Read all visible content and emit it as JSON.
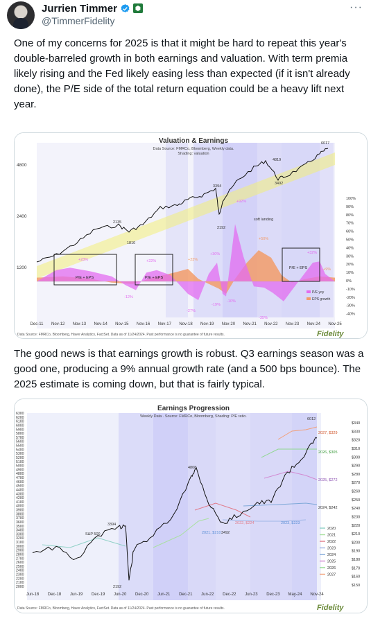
{
  "post": {
    "author": {
      "name": "Jurrien Timmer",
      "handle": "@TimmerFidelity"
    },
    "more_label": "···",
    "text1": "One of my concerns for 2025 is that it might be hard to repeat this year's double-barreled growth in both earnings and valuation.  With term premia likely rising and the Fed likely easing less than expected (if it isn't already done), the P/E side of the total return equation could be a heavy lift next year.",
    "text2": "The good news is that earnings growth is robust.  Q3 earnings season was a good one, producing a 9% annual growth rate (and a 500 bps bounce).  The 2025 estimate is coming down, but that is fairly typical."
  },
  "colors": {
    "price": "#111111",
    "pe_yoy": "#e36cf0",
    "eps_growth": "#f29c6a",
    "trend": "#f2ee7a",
    "shading": "#b8b7f5",
    "fidelity": "#6b8a3a"
  },
  "chart_data": [
    {
      "type": "line",
      "title": "Valuation & Earnings",
      "subtitle": "Data Source: FMRCo, Bloomberg, Weekly data.",
      "subtitle2": "Shading: valuation",
      "x_ticks": [
        "Dec-11",
        "Nov-12",
        "Nov-13",
        "Nov-14",
        "Nov-15",
        "Nov-16",
        "Nov-17",
        "Nov-18",
        "Nov-19",
        "Nov-20",
        "Nov-21",
        "Nov-22",
        "Nov-23",
        "Nov-24",
        "Nov-25"
      ],
      "y_left_ticks": [
        "4800",
        "2400",
        "1200"
      ],
      "y_right_ticks": [
        "100%",
        "90%",
        "80%",
        "70%",
        "60%",
        "50%",
        "40%",
        "30%",
        "20%",
        "10%",
        "0%",
        "-10%",
        "-20%",
        "-30%",
        "-40%"
      ],
      "series": [
        {
          "name": "S&P 500",
          "x": [
            "Dec-11",
            "Nov-12",
            "Nov-13",
            "Nov-14",
            "Nov-15",
            "Nov-16",
            "Nov-17",
            "Nov-18",
            "Nov-19",
            "Mar-20",
            "Nov-20",
            "Nov-21",
            "Oct-22",
            "Nov-23",
            "Nov-24"
          ],
          "values": [
            1250,
            1400,
            1800,
            2070,
            2080,
            2200,
            2600,
            2700,
            3100,
            2192,
            3550,
            4700,
            3492,
            4550,
            6017
          ]
        },
        {
          "name": "P/E yoy"
        },
        {
          "name": "EPS growth"
        }
      ],
      "annotations": [
        "6017",
        "4819",
        "3394",
        "3492",
        "2135",
        "1810",
        "2192",
        "+92%",
        "soft landing",
        "+50%",
        "+23%",
        "+22%",
        "+23%",
        "+30%",
        "+32%",
        "+9%",
        "P/E + EPS",
        "P/E + EPS",
        "P/E + EPS",
        "-12%",
        "-27%",
        "-19%",
        "-10%",
        "-35%"
      ],
      "legend": [
        "P/E yoy",
        "EPS growth"
      ],
      "footer": "Data Source: FMRCo, Bloomberg, Haver Analytics, FactSet. Data as of 11/24/2024. Past performance is no guarantee of future results.",
      "brand": "Fidelity"
    },
    {
      "type": "line",
      "title": "Earnings Progression",
      "subtitle": "Weekly Data . Source: FMRCo, Bloomberg, Shading: P/E ratio.",
      "x_ticks": [
        "Jun-18",
        "Dec-18",
        "Jun-19",
        "Dec-19",
        "Jun-20",
        "Dec-20",
        "Jun-21",
        "Dec-21",
        "Jun-22",
        "Dec-22",
        "Jun-23",
        "Dec-23",
        "May-24",
        "Nov-24"
      ],
      "y_left_ticks": [
        "6300",
        "6200",
        "6100",
        "6000",
        "5900",
        "5800",
        "5700",
        "5600",
        "5500",
        "5400",
        "5300",
        "5200",
        "5100",
        "5000",
        "4900",
        "4800",
        "4700",
        "4600",
        "4500",
        "4400",
        "4300",
        "4200",
        "4100",
        "4000",
        "3900",
        "3800",
        "3700",
        "3600",
        "3500",
        "3400",
        "3300",
        "3200",
        "3100",
        "3000",
        "2900",
        "2800",
        "2700",
        "2600",
        "2500",
        "2400",
        "2300",
        "2200",
        "2100",
        "2000"
      ],
      "y_right_ticks": [
        "$340",
        "$330",
        "$320",
        "$310",
        "$300",
        "$290",
        "$280",
        "$270",
        "$260",
        "$250",
        "$240",
        "$230",
        "$220",
        "$210",
        "$200",
        "$190",
        "$180",
        "$170",
        "$160",
        "$150"
      ],
      "series": [
        {
          "name": "S&P 500",
          "x": [
            "Jun-18",
            "Dec-18",
            "Jun-19",
            "Dec-19",
            "Mar-20",
            "Jun-20",
            "Dec-20",
            "Dec-21",
            "Jun-22",
            "Oct-22",
            "Jun-23",
            "Dec-23",
            "May-24",
            "Nov-24"
          ],
          "values": [
            2750,
            2500,
            2950,
            3250,
            2192,
            3100,
            3750,
            4808,
            3800,
            3492,
            4400,
            4770,
            5300,
            6012
          ]
        },
        {
          "name": "2020"
        },
        {
          "name": "2021"
        },
        {
          "name": "2022"
        },
        {
          "name": "2023"
        },
        {
          "name": "2024"
        },
        {
          "name": "2025"
        },
        {
          "name": "2026"
        },
        {
          "name": "2027"
        }
      ],
      "annotations": [
        "6012",
        "4808",
        "3394",
        "3492",
        "2192",
        "S&P 500",
        "2021, $210",
        "2022, $224",
        "2023, $223",
        "2024, $242",
        "2025, $272",
        "2026, $305",
        "2027, $329"
      ],
      "legend": [
        "2020",
        "2021",
        "2022",
        "2023",
        "2024",
        "2025",
        "2026",
        "2027"
      ],
      "legend_colors": [
        "#8fd1c6",
        "#a9e0a0",
        "#e07b8a",
        "#9fb6e6",
        "#7ea8d8",
        "#d28ad2",
        "#8ed88e",
        "#f2a07a"
      ],
      "footer": "Data Source: FMRCo, Bloomberg, Haver Analytics, FactSet. Data as of 11/24/2024. Past performance is no guarantee of future results.",
      "brand": "Fidelity"
    }
  ]
}
